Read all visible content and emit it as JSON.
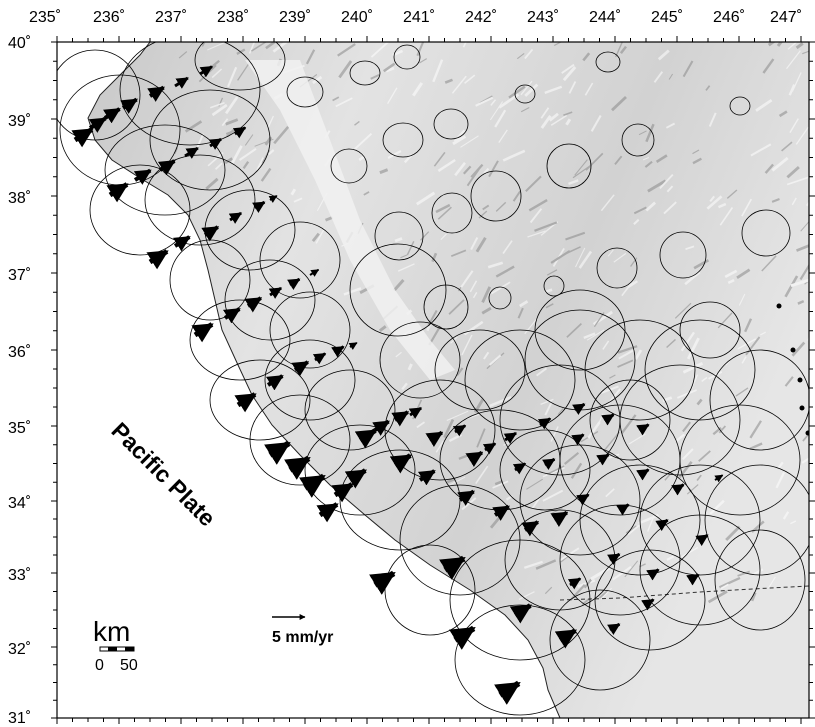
{
  "map": {
    "longitude_labels": [
      "235˚",
      "236˚",
      "237˚",
      "238˚",
      "239˚",
      "240˚",
      "241˚",
      "242˚",
      "243˚",
      "244˚",
      "245˚",
      "246˚",
      "247˚"
    ],
    "latitude_labels": [
      "40˚",
      "39˚",
      "38˚",
      "37˚",
      "36˚",
      "35˚",
      "34˚",
      "33˚",
      "32˚",
      "31˚"
    ],
    "plate_label": "Pacific Plate",
    "scale_bar": {
      "unit": "km",
      "tick_zero": "0",
      "tick_max": "50"
    },
    "reference_vector": {
      "label": "5 mm/yr"
    },
    "colors": {
      "ocean": "#ffffff",
      "land": "#d9d9d9",
      "ink": "#000000"
    }
  }
}
